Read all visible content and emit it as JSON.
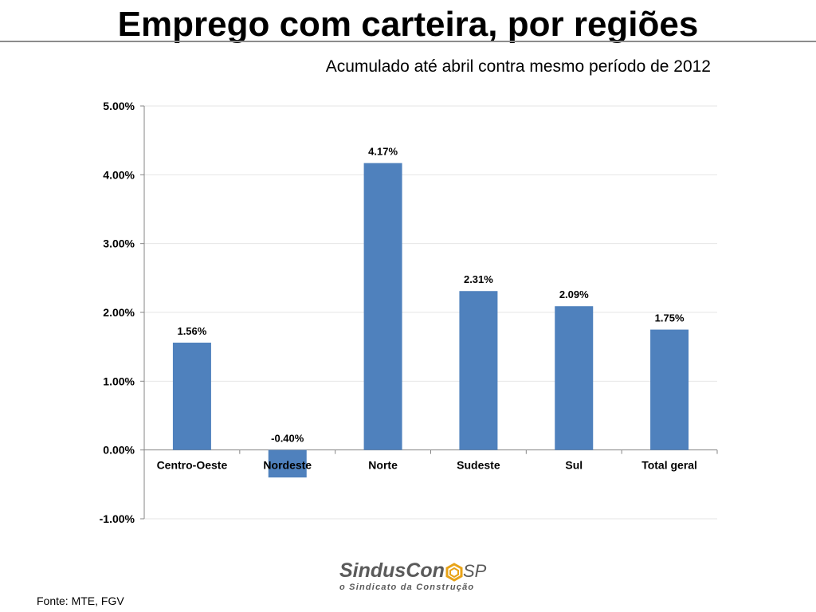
{
  "header": {
    "title": "Emprego com carteira, por regiões",
    "subtitle": "Acumulado até abril contra mesmo período de 2012"
  },
  "chart_data": {
    "type": "bar",
    "categories": [
      "Centro-Oeste",
      "Nordeste",
      "Norte",
      "Sudeste",
      "Sul",
      "Total geral"
    ],
    "values": [
      1.56,
      -0.4,
      4.17,
      2.31,
      2.09,
      1.75
    ],
    "data_labels": [
      "1.56%",
      "-0.40%",
      "4.17%",
      "2.31%",
      "2.09%",
      "1.75%"
    ],
    "ylim": [
      -1,
      5
    ],
    "yticks": [
      5,
      4,
      3,
      2,
      1,
      0,
      -1
    ],
    "ytick_labels": [
      "5.00%",
      "4.00%",
      "3.00%",
      "2.00%",
      "1.00%",
      "0.00%",
      "-1.00%"
    ],
    "bar_color": "#4f81bd",
    "grid": true,
    "legend": "none"
  },
  "logo": {
    "name": "SindusCon",
    "suffix": "SP",
    "tagline": "o Sindicato da Construção",
    "colors": {
      "text": "#5a5a5a",
      "accent": "#e8a317"
    }
  },
  "footer": {
    "source": "Fonte: MTE, FGV"
  }
}
